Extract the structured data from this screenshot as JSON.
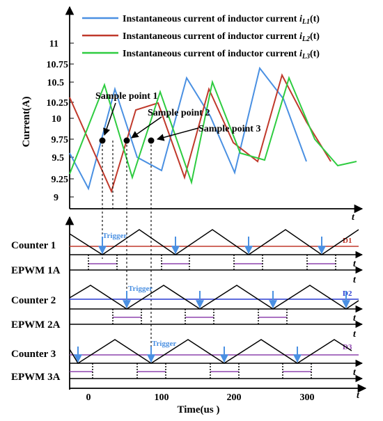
{
  "legend": [
    {
      "text": "Instantaneous current of inductor current ",
      "var": "i",
      "sub": "L1",
      "tail": "(t)",
      "color": "#4a90e2"
    },
    {
      "text": "Instantaneous current of inductor current ",
      "var": "i",
      "sub": "L2",
      "tail": "(t)",
      "color": "#c0392b"
    },
    {
      "text": "Instantaneous current of inductor current ",
      "var": "i",
      "sub": "L3",
      "tail": "(t)",
      "color": "#2ecc40"
    }
  ],
  "current_axis": {
    "ylabel": "Current(A)",
    "ticks": [
      "9",
      "9.25",
      "9.5",
      "9.75",
      "10",
      "10.25",
      "10.5",
      "10.75",
      "11"
    ],
    "t_label": "t"
  },
  "sample_points": [
    {
      "label": "Sample point 1",
      "value": 9.75
    },
    {
      "label": "Sample point 2",
      "value": 9.75
    },
    {
      "label": "Sample point 3",
      "value": 9.75
    }
  ],
  "counters": [
    {
      "label": "Counter 1",
      "duty": "D1",
      "duty_color": "#c0392b",
      "trigger": "Trigger",
      "epwm": "EPWM 1A"
    },
    {
      "label": "Counter 2",
      "duty": "D2",
      "duty_color": "#2a3bd1",
      "trigger": "Trigger",
      "epwm": "EPWM 2A"
    },
    {
      "label": "Counter 3",
      "duty": "D3",
      "duty_color": "#8e44ad",
      "trigger": "Trigger",
      "epwm": "EPWM 3A"
    }
  ],
  "time_axis": {
    "xlabel": "Time(us )",
    "ticks": [
      "0",
      "100",
      "200",
      "300"
    ],
    "t_label": "t"
  },
  "colors": {
    "trigger_arrow": "#4a90e2",
    "pwm_pulse": "#8e44ad",
    "axis": "#000000"
  }
}
